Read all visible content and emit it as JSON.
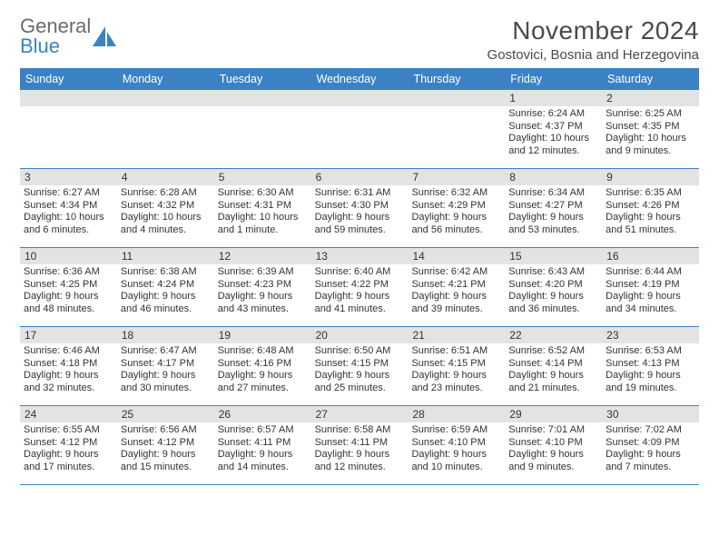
{
  "brand": {
    "line1": "General",
    "line2": "Blue",
    "logo_color": "#3b82c4",
    "text_color": "#6b6b6b"
  },
  "header": {
    "title": "November 2024",
    "location": "Gostovici, Bosnia and Herzegovina"
  },
  "colors": {
    "header_bg": "#3b82c4",
    "day_num_bg": "#e3e3e3",
    "rule": "#3b82c4",
    "text": "#333333"
  },
  "daysOfWeek": [
    "Sunday",
    "Monday",
    "Tuesday",
    "Wednesday",
    "Thursday",
    "Friday",
    "Saturday"
  ],
  "weeks": [
    [
      {
        "empty": true
      },
      {
        "empty": true
      },
      {
        "empty": true
      },
      {
        "empty": true
      },
      {
        "empty": true
      },
      {
        "num": "1",
        "sunrise": "Sunrise: 6:24 AM",
        "sunset": "Sunset: 4:37 PM",
        "daylight": "Daylight: 10 hours and 12 minutes."
      },
      {
        "num": "2",
        "sunrise": "Sunrise: 6:25 AM",
        "sunset": "Sunset: 4:35 PM",
        "daylight": "Daylight: 10 hours and 9 minutes."
      }
    ],
    [
      {
        "num": "3",
        "sunrise": "Sunrise: 6:27 AM",
        "sunset": "Sunset: 4:34 PM",
        "daylight": "Daylight: 10 hours and 6 minutes."
      },
      {
        "num": "4",
        "sunrise": "Sunrise: 6:28 AM",
        "sunset": "Sunset: 4:32 PM",
        "daylight": "Daylight: 10 hours and 4 minutes."
      },
      {
        "num": "5",
        "sunrise": "Sunrise: 6:30 AM",
        "sunset": "Sunset: 4:31 PM",
        "daylight": "Daylight: 10 hours and 1 minute."
      },
      {
        "num": "6",
        "sunrise": "Sunrise: 6:31 AM",
        "sunset": "Sunset: 4:30 PM",
        "daylight": "Daylight: 9 hours and 59 minutes."
      },
      {
        "num": "7",
        "sunrise": "Sunrise: 6:32 AM",
        "sunset": "Sunset: 4:29 PM",
        "daylight": "Daylight: 9 hours and 56 minutes."
      },
      {
        "num": "8",
        "sunrise": "Sunrise: 6:34 AM",
        "sunset": "Sunset: 4:27 PM",
        "daylight": "Daylight: 9 hours and 53 minutes."
      },
      {
        "num": "9",
        "sunrise": "Sunrise: 6:35 AM",
        "sunset": "Sunset: 4:26 PM",
        "daylight": "Daylight: 9 hours and 51 minutes."
      }
    ],
    [
      {
        "num": "10",
        "sunrise": "Sunrise: 6:36 AM",
        "sunset": "Sunset: 4:25 PM",
        "daylight": "Daylight: 9 hours and 48 minutes."
      },
      {
        "num": "11",
        "sunrise": "Sunrise: 6:38 AM",
        "sunset": "Sunset: 4:24 PM",
        "daylight": "Daylight: 9 hours and 46 minutes."
      },
      {
        "num": "12",
        "sunrise": "Sunrise: 6:39 AM",
        "sunset": "Sunset: 4:23 PM",
        "daylight": "Daylight: 9 hours and 43 minutes."
      },
      {
        "num": "13",
        "sunrise": "Sunrise: 6:40 AM",
        "sunset": "Sunset: 4:22 PM",
        "daylight": "Daylight: 9 hours and 41 minutes."
      },
      {
        "num": "14",
        "sunrise": "Sunrise: 6:42 AM",
        "sunset": "Sunset: 4:21 PM",
        "daylight": "Daylight: 9 hours and 39 minutes."
      },
      {
        "num": "15",
        "sunrise": "Sunrise: 6:43 AM",
        "sunset": "Sunset: 4:20 PM",
        "daylight": "Daylight: 9 hours and 36 minutes."
      },
      {
        "num": "16",
        "sunrise": "Sunrise: 6:44 AM",
        "sunset": "Sunset: 4:19 PM",
        "daylight": "Daylight: 9 hours and 34 minutes."
      }
    ],
    [
      {
        "num": "17",
        "sunrise": "Sunrise: 6:46 AM",
        "sunset": "Sunset: 4:18 PM",
        "daylight": "Daylight: 9 hours and 32 minutes."
      },
      {
        "num": "18",
        "sunrise": "Sunrise: 6:47 AM",
        "sunset": "Sunset: 4:17 PM",
        "daylight": "Daylight: 9 hours and 30 minutes."
      },
      {
        "num": "19",
        "sunrise": "Sunrise: 6:48 AM",
        "sunset": "Sunset: 4:16 PM",
        "daylight": "Daylight: 9 hours and 27 minutes."
      },
      {
        "num": "20",
        "sunrise": "Sunrise: 6:50 AM",
        "sunset": "Sunset: 4:15 PM",
        "daylight": "Daylight: 9 hours and 25 minutes."
      },
      {
        "num": "21",
        "sunrise": "Sunrise: 6:51 AM",
        "sunset": "Sunset: 4:15 PM",
        "daylight": "Daylight: 9 hours and 23 minutes."
      },
      {
        "num": "22",
        "sunrise": "Sunrise: 6:52 AM",
        "sunset": "Sunset: 4:14 PM",
        "daylight": "Daylight: 9 hours and 21 minutes."
      },
      {
        "num": "23",
        "sunrise": "Sunrise: 6:53 AM",
        "sunset": "Sunset: 4:13 PM",
        "daylight": "Daylight: 9 hours and 19 minutes."
      }
    ],
    [
      {
        "num": "24",
        "sunrise": "Sunrise: 6:55 AM",
        "sunset": "Sunset: 4:12 PM",
        "daylight": "Daylight: 9 hours and 17 minutes."
      },
      {
        "num": "25",
        "sunrise": "Sunrise: 6:56 AM",
        "sunset": "Sunset: 4:12 PM",
        "daylight": "Daylight: 9 hours and 15 minutes."
      },
      {
        "num": "26",
        "sunrise": "Sunrise: 6:57 AM",
        "sunset": "Sunset: 4:11 PM",
        "daylight": "Daylight: 9 hours and 14 minutes."
      },
      {
        "num": "27",
        "sunrise": "Sunrise: 6:58 AM",
        "sunset": "Sunset: 4:11 PM",
        "daylight": "Daylight: 9 hours and 12 minutes."
      },
      {
        "num": "28",
        "sunrise": "Sunrise: 6:59 AM",
        "sunset": "Sunset: 4:10 PM",
        "daylight": "Daylight: 9 hours and 10 minutes."
      },
      {
        "num": "29",
        "sunrise": "Sunrise: 7:01 AM",
        "sunset": "Sunset: 4:10 PM",
        "daylight": "Daylight: 9 hours and 9 minutes."
      },
      {
        "num": "30",
        "sunrise": "Sunrise: 7:02 AM",
        "sunset": "Sunset: 4:09 PM",
        "daylight": "Daylight: 9 hours and 7 minutes."
      }
    ]
  ]
}
